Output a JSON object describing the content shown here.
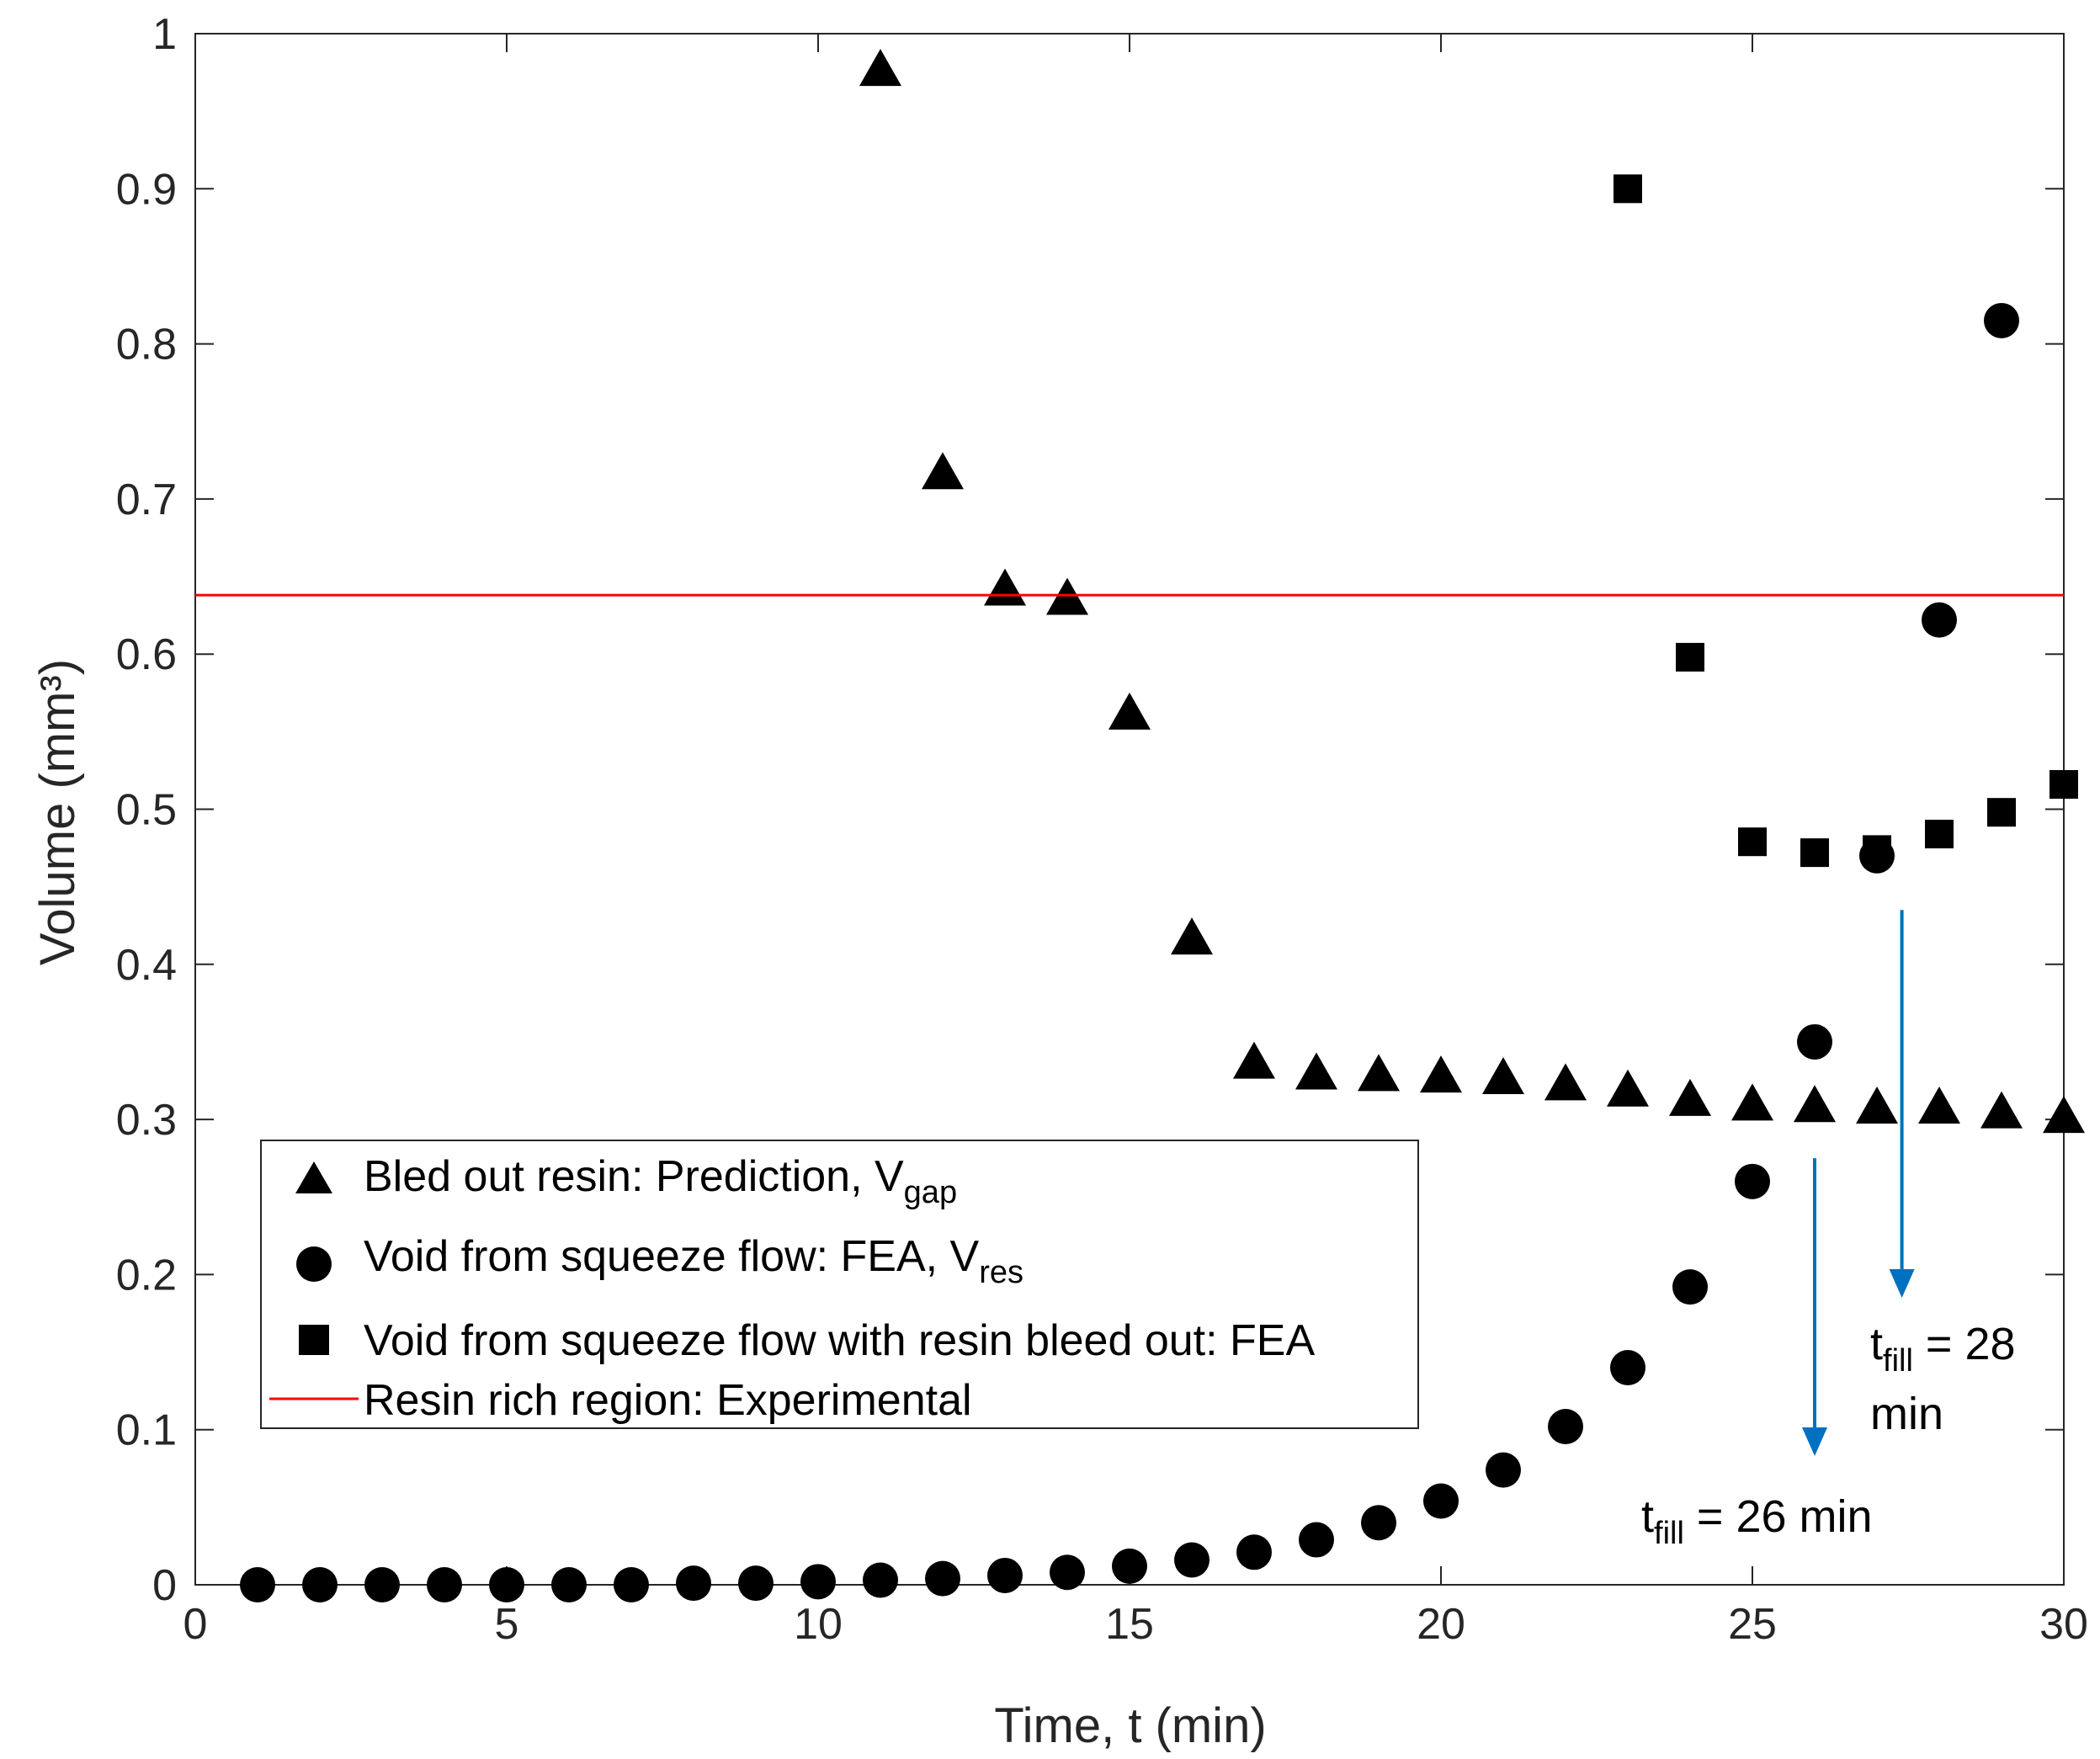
{
  "chart_data": {
    "type": "scatter",
    "title": "",
    "xlabel": "Time, t (min)",
    "ylabel": "Volume (mm³)",
    "xlim": [
      0,
      30
    ],
    "ylim": [
      0,
      1
    ],
    "xticks": [
      "0",
      "5",
      "10",
      "15",
      "20",
      "25",
      "30"
    ],
    "yticks": [
      "0",
      "0.1",
      "0.2",
      "0.3",
      "0.4",
      "0.5",
      "0.6",
      "0.7",
      "0.8",
      "0.9",
      "1"
    ],
    "grid": false,
    "legend_position": "lower-left",
    "series": [
      {
        "name": "Bled out resin: Prediction, V",
        "subscript": "gap",
        "marker": "triangle",
        "color": "#000000",
        "x": [
          11,
          12,
          13,
          14,
          15,
          16,
          17,
          18,
          19,
          20,
          21,
          22,
          23,
          24,
          25,
          26,
          27,
          28,
          29,
          30
        ],
        "y": [
          0.975,
          0.715,
          0.64,
          0.634,
          0.56,
          0.415,
          0.335,
          0.328,
          0.327,
          0.326,
          0.325,
          0.321,
          0.317,
          0.311,
          0.308,
          0.307,
          0.306,
          0.306,
          0.303,
          0.3
        ]
      },
      {
        "name": "Void from squeeze flow: FEA, V",
        "subscript": "res",
        "marker": "circle",
        "color": "#000000",
        "x": [
          1,
          2,
          3,
          4,
          5,
          6,
          7,
          8,
          9,
          10,
          11,
          12,
          13,
          14,
          15,
          16,
          17,
          18,
          19,
          20,
          21,
          22,
          23,
          24,
          25,
          26,
          27,
          28,
          29
        ],
        "y": [
          0,
          0,
          0,
          0,
          0,
          0,
          0,
          0.001,
          0.001,
          0.002,
          0.003,
          0.004,
          0.006,
          0.008,
          0.012,
          0.016,
          0.021,
          0.029,
          0.04,
          0.054,
          0.074,
          0.102,
          0.14,
          0.192,
          0.26,
          0.35,
          0.47,
          0.622,
          0.815
        ]
      },
      {
        "name": "Void from squeeze flow with resin bleed out: FEA",
        "marker": "square",
        "color": "#000000",
        "x": [
          23,
          24,
          25,
          26,
          27,
          28,
          29,
          30
        ],
        "y": [
          0.9,
          0.598,
          0.479,
          0.472,
          0.474,
          0.484,
          0.498,
          0.516
        ]
      },
      {
        "name": "Resin rich region: Experimental",
        "marker": "line",
        "color": "#ff0000",
        "x": [
          0,
          30
        ],
        "y": [
          0.638,
          0.638
        ]
      }
    ],
    "annotations": [
      {
        "text": "t",
        "sub": "fill",
        "rest": " = 26 min",
        "arrow_x": 26,
        "arrow_from": 0.275,
        "arrow_to": 0.083,
        "color": "#0070c0"
      },
      {
        "text": "t",
        "sub": "fill",
        "rest": " = 28",
        "line2": "min",
        "arrow_x": 27.4,
        "arrow_from": 0.435,
        "arrow_to": 0.185,
        "color": "#0070c0"
      }
    ]
  }
}
